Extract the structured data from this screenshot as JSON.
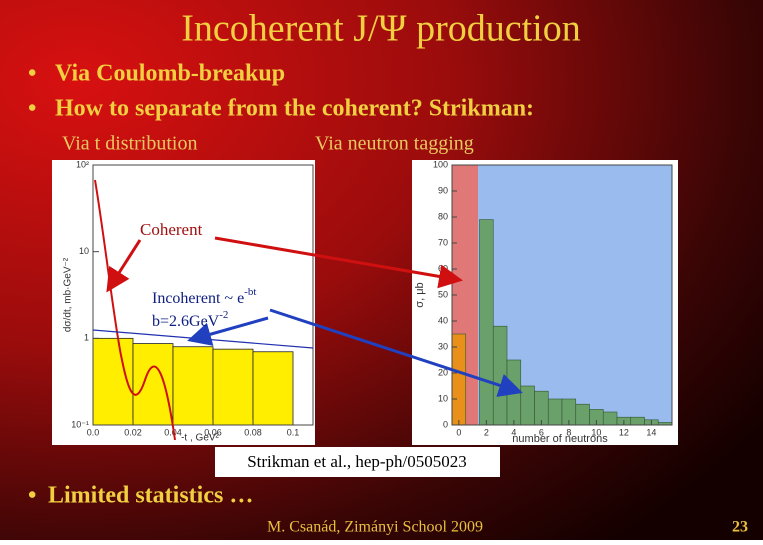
{
  "title": "Incoherent J/Ψ production",
  "bullets": [
    "Via Coulomb-breakup",
    "How to separate from the coherent? Strikman:"
  ],
  "sub_headings": [
    "Via t distribution",
    "Via neutron tagging"
  ],
  "left_plot": {
    "type": "bar",
    "y_label": "dσ/dt, mb·GeV⁻²",
    "x_label": "-t , GeV²",
    "log_y": true,
    "color": "#ffee00",
    "bins": [
      0,
      0.02,
      0.04,
      0.06,
      0.08,
      0.1
    ],
    "values": [
      1.0,
      0.87,
      0.8,
      0.75,
      0.7
    ],
    "xlim": [
      0,
      0.11
    ],
    "xticks": [
      {
        "value": 0,
        "label": "0.0"
      },
      0.02,
      0.04,
      0.06,
      0.08,
      0.1
    ],
    "ylim": [
      0.1,
      100
    ],
    "yticks": [
      {
        "value": 100,
        "label": "10²"
      },
      10,
      1,
      {
        "value": 0.1,
        "label": "10⁻¹"
      }
    ]
  },
  "right_plot": {
    "type": "bar",
    "y_label": "σ, μb",
    "x_label": "number of neutrons",
    "x": [
      0,
      1,
      2,
      3,
      4,
      5,
      6,
      7,
      8,
      9,
      10,
      11,
      12,
      13,
      14,
      15
    ],
    "series": [
      {
        "color": "#e8901a",
        "values": [
          35,
          null,
          null,
          null,
          null,
          null,
          null,
          null,
          null,
          null,
          null,
          null,
          null,
          null,
          null,
          null
        ]
      },
      {
        "color": "#6aa06a",
        "values": [
          null,
          null,
          79,
          38,
          25,
          15,
          13,
          10,
          10,
          8,
          6,
          5,
          3,
          3,
          2,
          1
        ]
      }
    ],
    "xlim": [
      -0.5,
      15.5
    ],
    "xticks": [
      0,
      2,
      4,
      6,
      8,
      10,
      12,
      14
    ],
    "ylim": [
      0,
      100
    ],
    "yticks": [
      0,
      10,
      20,
      30,
      40,
      50,
      60,
      70,
      80,
      90,
      100
    ]
  },
  "annotations": {
    "coherent": "Coherent",
    "incoherent": "Incoherent ~ e",
    "incoherent_sup": "-bt",
    "slope": "b=2.6GeV",
    "slope_sup": "-2"
  },
  "citation": "Strikman et al., hep-ph/0505023",
  "bottom_bullet": "Limited statistics …",
  "footer": "M. Csanád, Zimányi School 2009",
  "page_number": "23"
}
